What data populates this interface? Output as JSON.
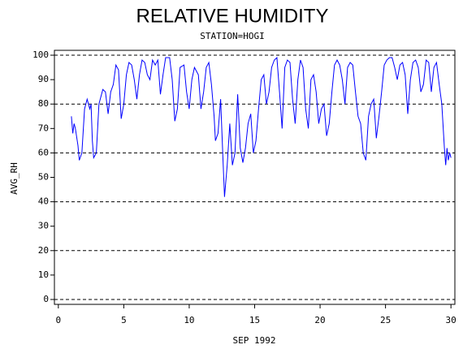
{
  "chart_data": {
    "type": "line",
    "title": "RELATIVE HUMIDITY",
    "subtitle": "STATION=HOGI",
    "y_label": "AVG_RH",
    "x_label": "SEP 1992",
    "color": "#0000ff",
    "x": [
      1.0,
      1.1,
      1.2,
      1.3,
      1.5,
      1.6,
      1.8,
      2.0,
      2.2,
      2.4,
      2.5,
      2.6,
      2.7,
      2.9,
      3.1,
      3.4,
      3.6,
      3.8,
      4.0,
      4.2,
      4.4,
      4.6,
      4.8,
      5.0,
      5.2,
      5.4,
      5.6,
      5.8,
      6.0,
      6.2,
      6.4,
      6.6,
      6.8,
      7.0,
      7.2,
      7.4,
      7.6,
      7.8,
      8.0,
      8.2,
      8.5,
      8.7,
      8.9,
      9.1,
      9.3,
      9.6,
      9.8,
      10.0,
      10.2,
      10.4,
      10.7,
      10.9,
      11.1,
      11.3,
      11.5,
      11.7,
      11.9,
      12.0,
      12.2,
      12.4,
      12.6,
      12.7,
      12.9,
      13.1,
      13.3,
      13.5,
      13.7,
      13.9,
      14.1,
      14.3,
      14.5,
      14.7,
      14.9,
      15.1,
      15.3,
      15.5,
      15.7,
      15.9,
      16.1,
      16.3,
      16.5,
      16.7,
      16.9,
      17.1,
      17.3,
      17.5,
      17.7,
      17.9,
      18.1,
      18.3,
      18.5,
      18.7,
      18.9,
      19.1,
      19.3,
      19.5,
      19.7,
      19.9,
      20.1,
      20.3,
      20.5,
      20.7,
      20.9,
      21.1,
      21.3,
      21.5,
      21.7,
      21.9,
      22.1,
      22.3,
      22.5,
      22.7,
      22.9,
      23.1,
      23.3,
      23.5,
      23.7,
      23.9,
      24.1,
      24.3,
      24.5,
      24.7,
      24.9,
      25.1,
      25.3,
      25.5,
      25.7,
      25.9,
      26.1,
      26.3,
      26.5,
      26.7,
      26.9,
      27.1,
      27.3,
      27.5,
      27.7,
      27.9,
      28.1,
      28.3,
      28.5,
      28.7,
      28.9,
      29.1,
      29.3,
      29.5,
      29.6,
      29.7,
      29.8,
      29.9,
      30.0
    ],
    "values": [
      75,
      68,
      72,
      70,
      63,
      57,
      60,
      78,
      82,
      78,
      80,
      65,
      58,
      60,
      80,
      86,
      85,
      76,
      85,
      88,
      96,
      94,
      74,
      80,
      92,
      97,
      96,
      90,
      82,
      92,
      98,
      97,
      92,
      90,
      98,
      96,
      98,
      84,
      92,
      99,
      99,
      90,
      73,
      78,
      95,
      96,
      85,
      78,
      90,
      95,
      92,
      78,
      85,
      95,
      97,
      88,
      75,
      65,
      68,
      82,
      55,
      42,
      55,
      72,
      55,
      60,
      84,
      62,
      56,
      62,
      72,
      76,
      60,
      65,
      78,
      90,
      92,
      80,
      85,
      95,
      98,
      99,
      85,
      70,
      95,
      98,
      97,
      82,
      72,
      90,
      98,
      95,
      78,
      70,
      90,
      92,
      85,
      72,
      78,
      80,
      67,
      72,
      85,
      96,
      98,
      96,
      90,
      80,
      95,
      97,
      96,
      85,
      75,
      72,
      60,
      57,
      75,
      80,
      82,
      66,
      75,
      85,
      96,
      98,
      99,
      99,
      95,
      90,
      96,
      97,
      92,
      76,
      90,
      97,
      98,
      95,
      85,
      88,
      98,
      97,
      85,
      95,
      97,
      88,
      80,
      62,
      55,
      62,
      57,
      60,
      58
    ],
    "xlim": [
      -0.3,
      30.3
    ],
    "ylim": [
      -2,
      102
    ],
    "xticks": [
      0,
      5,
      10,
      15,
      20,
      25,
      30
    ],
    "yticks": [
      0,
      10,
      20,
      30,
      40,
      50,
      60,
      70,
      80,
      90,
      100
    ],
    "ygrid": [
      0,
      20,
      40,
      60,
      80,
      100
    ]
  }
}
